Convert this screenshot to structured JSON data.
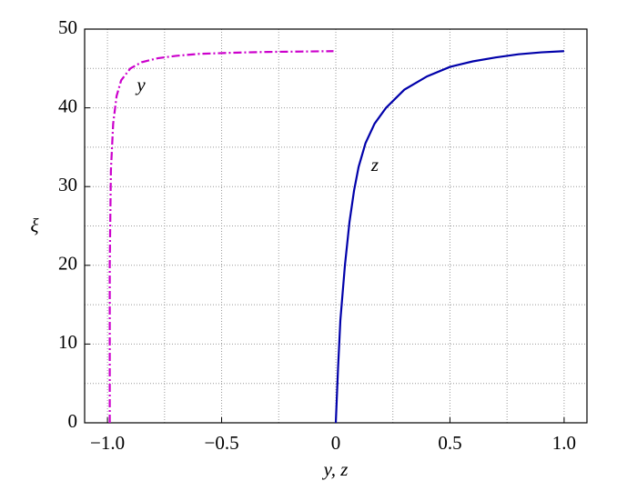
{
  "chart_data": {
    "type": "line",
    "xlabel": "y, z",
    "ylabel": "ξ",
    "annotations": [
      "y",
      "z"
    ],
    "xlim": [
      -1.1,
      1.1
    ],
    "ylim": [
      0,
      50
    ],
    "xticks": [
      {
        "value": -1.0,
        "label": "−1.0"
      },
      {
        "value": -0.5,
        "label": "−0.5"
      },
      0,
      {
        "value": 0.5,
        "label": "0.5"
      },
      {
        "value": 1.0,
        "label": "1.0"
      }
    ],
    "yticks": [
      0,
      10,
      20,
      30,
      40,
      50
    ],
    "x_minor_grid": [
      -0.75,
      -0.25,
      0.25,
      0.75
    ],
    "y_minor_grid": [
      5,
      15,
      25,
      35,
      45
    ],
    "grid": true,
    "series": [
      {
        "name": "y",
        "color": "#cc00cc",
        "dash": "dashdot",
        "x": [
          -0.99,
          -0.99,
          -0.985,
          -0.975,
          -0.96,
          -0.94,
          -0.9,
          -0.85,
          -0.78,
          -0.7,
          -0.6,
          -0.45,
          -0.3,
          -0.15,
          -0.01
        ],
        "values": [
          0,
          20,
          32,
          38,
          41.5,
          43.5,
          45,
          45.8,
          46.3,
          46.6,
          46.85,
          47.0,
          47.1,
          47.15,
          47.2
        ]
      },
      {
        "name": "z",
        "color": "#0000aa",
        "dash": "solid",
        "x": [
          0,
          0.01,
          0.02,
          0.04,
          0.06,
          0.08,
          0.1,
          0.13,
          0.17,
          0.22,
          0.3,
          0.4,
          0.5,
          0.6,
          0.7,
          0.8,
          0.9,
          1.0
        ],
        "values": [
          0,
          7,
          13,
          20,
          25.5,
          29.5,
          32.5,
          35.5,
          38,
          40,
          42.3,
          44,
          45.2,
          45.9,
          46.4,
          46.8,
          47.05,
          47.2
        ]
      }
    ]
  }
}
